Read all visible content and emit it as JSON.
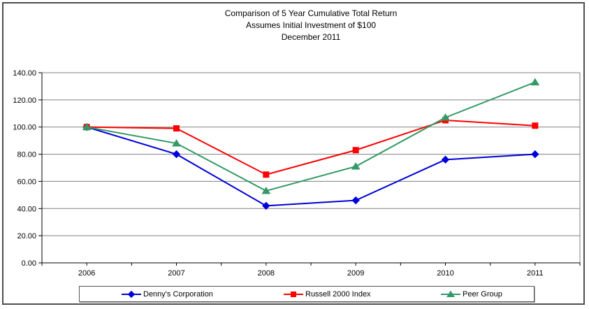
{
  "title": {
    "line1": "Comparison of 5 Year Cumulative Total Return",
    "line2": "Assumes Initial Investment of $100",
    "line3": "December 2011"
  },
  "chart_data": {
    "type": "line",
    "categories": [
      "2006",
      "2007",
      "2008",
      "2009",
      "2010",
      "2011"
    ],
    "series": [
      {
        "name": "Denny's Corporation",
        "marker": "diamond",
        "color": "#0000D8",
        "values": [
          100,
          80,
          42,
          46,
          76,
          80
        ]
      },
      {
        "name": "Russell 2000 Index",
        "marker": "square",
        "color": "#FF0000",
        "values": [
          100,
          99,
          65,
          83,
          105,
          101
        ]
      },
      {
        "name": "Peer Group",
        "marker": "triangle",
        "color": "#339966",
        "values": [
          100,
          88,
          53,
          71,
          107,
          133
        ]
      }
    ],
    "ylim": [
      0,
      140
    ],
    "ytick_step": 20,
    "ytick_labels": [
      "0.00",
      "20.00",
      "40.00",
      "60.00",
      "80.00",
      "100.00",
      "120.00",
      "140.00"
    ],
    "grid": true,
    "legend_position": "bottom"
  },
  "colors": {
    "background": "#FFFFFF",
    "gridline": "#808080",
    "axis": "#000000",
    "frame_border": "#4E4E4E",
    "legend_border": "#565656"
  }
}
